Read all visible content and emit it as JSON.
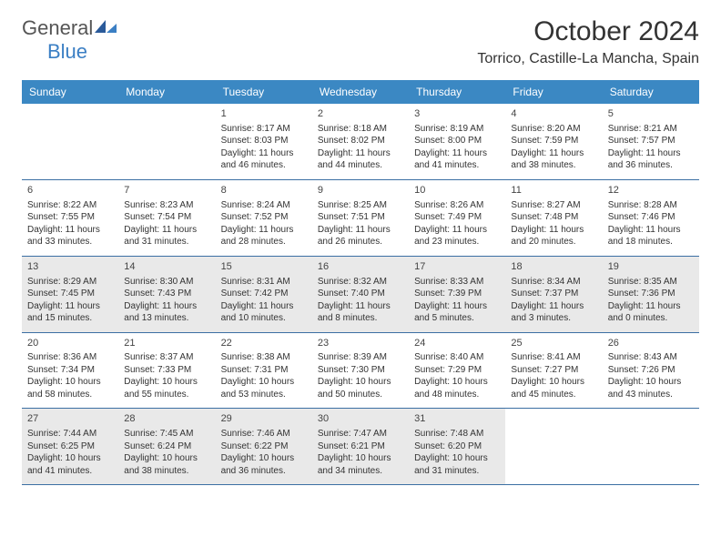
{
  "logo": {
    "text1": "General",
    "text2": "Blue"
  },
  "title": "October 2024",
  "location": "Torrico, Castille-La Mancha, Spain",
  "colors": {
    "header_bg": "#3b88c3",
    "header_text": "#ffffff",
    "shaded_bg": "#e9e9e9",
    "border": "#3b6fa3",
    "logo_blue": "#3b7fc4"
  },
  "day_names": [
    "Sunday",
    "Monday",
    "Tuesday",
    "Wednesday",
    "Thursday",
    "Friday",
    "Saturday"
  ],
  "weeks": [
    [
      null,
      null,
      {
        "n": "1",
        "sr": "Sunrise: 8:17 AM",
        "ss": "Sunset: 8:03 PM",
        "d1": "Daylight: 11 hours",
        "d2": "and 46 minutes."
      },
      {
        "n": "2",
        "sr": "Sunrise: 8:18 AM",
        "ss": "Sunset: 8:02 PM",
        "d1": "Daylight: 11 hours",
        "d2": "and 44 minutes."
      },
      {
        "n": "3",
        "sr": "Sunrise: 8:19 AM",
        "ss": "Sunset: 8:00 PM",
        "d1": "Daylight: 11 hours",
        "d2": "and 41 minutes."
      },
      {
        "n": "4",
        "sr": "Sunrise: 8:20 AM",
        "ss": "Sunset: 7:59 PM",
        "d1": "Daylight: 11 hours",
        "d2": "and 38 minutes."
      },
      {
        "n": "5",
        "sr": "Sunrise: 8:21 AM",
        "ss": "Sunset: 7:57 PM",
        "d1": "Daylight: 11 hours",
        "d2": "and 36 minutes."
      }
    ],
    [
      {
        "n": "6",
        "sr": "Sunrise: 8:22 AM",
        "ss": "Sunset: 7:55 PM",
        "d1": "Daylight: 11 hours",
        "d2": "and 33 minutes."
      },
      {
        "n": "7",
        "sr": "Sunrise: 8:23 AM",
        "ss": "Sunset: 7:54 PM",
        "d1": "Daylight: 11 hours",
        "d2": "and 31 minutes."
      },
      {
        "n": "8",
        "sr": "Sunrise: 8:24 AM",
        "ss": "Sunset: 7:52 PM",
        "d1": "Daylight: 11 hours",
        "d2": "and 28 minutes."
      },
      {
        "n": "9",
        "sr": "Sunrise: 8:25 AM",
        "ss": "Sunset: 7:51 PM",
        "d1": "Daylight: 11 hours",
        "d2": "and 26 minutes."
      },
      {
        "n": "10",
        "sr": "Sunrise: 8:26 AM",
        "ss": "Sunset: 7:49 PM",
        "d1": "Daylight: 11 hours",
        "d2": "and 23 minutes."
      },
      {
        "n": "11",
        "sr": "Sunrise: 8:27 AM",
        "ss": "Sunset: 7:48 PM",
        "d1": "Daylight: 11 hours",
        "d2": "and 20 minutes."
      },
      {
        "n": "12",
        "sr": "Sunrise: 8:28 AM",
        "ss": "Sunset: 7:46 PM",
        "d1": "Daylight: 11 hours",
        "d2": "and 18 minutes."
      }
    ],
    [
      {
        "n": "13",
        "sr": "Sunrise: 8:29 AM",
        "ss": "Sunset: 7:45 PM",
        "d1": "Daylight: 11 hours",
        "d2": "and 15 minutes.",
        "sh": true
      },
      {
        "n": "14",
        "sr": "Sunrise: 8:30 AM",
        "ss": "Sunset: 7:43 PM",
        "d1": "Daylight: 11 hours",
        "d2": "and 13 minutes.",
        "sh": true
      },
      {
        "n": "15",
        "sr": "Sunrise: 8:31 AM",
        "ss": "Sunset: 7:42 PM",
        "d1": "Daylight: 11 hours",
        "d2": "and 10 minutes.",
        "sh": true
      },
      {
        "n": "16",
        "sr": "Sunrise: 8:32 AM",
        "ss": "Sunset: 7:40 PM",
        "d1": "Daylight: 11 hours",
        "d2": "and 8 minutes.",
        "sh": true
      },
      {
        "n": "17",
        "sr": "Sunrise: 8:33 AM",
        "ss": "Sunset: 7:39 PM",
        "d1": "Daylight: 11 hours",
        "d2": "and 5 minutes.",
        "sh": true
      },
      {
        "n": "18",
        "sr": "Sunrise: 8:34 AM",
        "ss": "Sunset: 7:37 PM",
        "d1": "Daylight: 11 hours",
        "d2": "and 3 minutes.",
        "sh": true
      },
      {
        "n": "19",
        "sr": "Sunrise: 8:35 AM",
        "ss": "Sunset: 7:36 PM",
        "d1": "Daylight: 11 hours",
        "d2": "and 0 minutes.",
        "sh": true
      }
    ],
    [
      {
        "n": "20",
        "sr": "Sunrise: 8:36 AM",
        "ss": "Sunset: 7:34 PM",
        "d1": "Daylight: 10 hours",
        "d2": "and 58 minutes."
      },
      {
        "n": "21",
        "sr": "Sunrise: 8:37 AM",
        "ss": "Sunset: 7:33 PM",
        "d1": "Daylight: 10 hours",
        "d2": "and 55 minutes."
      },
      {
        "n": "22",
        "sr": "Sunrise: 8:38 AM",
        "ss": "Sunset: 7:31 PM",
        "d1": "Daylight: 10 hours",
        "d2": "and 53 minutes."
      },
      {
        "n": "23",
        "sr": "Sunrise: 8:39 AM",
        "ss": "Sunset: 7:30 PM",
        "d1": "Daylight: 10 hours",
        "d2": "and 50 minutes."
      },
      {
        "n": "24",
        "sr": "Sunrise: 8:40 AM",
        "ss": "Sunset: 7:29 PM",
        "d1": "Daylight: 10 hours",
        "d2": "and 48 minutes."
      },
      {
        "n": "25",
        "sr": "Sunrise: 8:41 AM",
        "ss": "Sunset: 7:27 PM",
        "d1": "Daylight: 10 hours",
        "d2": "and 45 minutes."
      },
      {
        "n": "26",
        "sr": "Sunrise: 8:43 AM",
        "ss": "Sunset: 7:26 PM",
        "d1": "Daylight: 10 hours",
        "d2": "and 43 minutes."
      }
    ],
    [
      {
        "n": "27",
        "sr": "Sunrise: 7:44 AM",
        "ss": "Sunset: 6:25 PM",
        "d1": "Daylight: 10 hours",
        "d2": "and 41 minutes.",
        "sh": true
      },
      {
        "n": "28",
        "sr": "Sunrise: 7:45 AM",
        "ss": "Sunset: 6:24 PM",
        "d1": "Daylight: 10 hours",
        "d2": "and 38 minutes.",
        "sh": true
      },
      {
        "n": "29",
        "sr": "Sunrise: 7:46 AM",
        "ss": "Sunset: 6:22 PM",
        "d1": "Daylight: 10 hours",
        "d2": "and 36 minutes.",
        "sh": true
      },
      {
        "n": "30",
        "sr": "Sunrise: 7:47 AM",
        "ss": "Sunset: 6:21 PM",
        "d1": "Daylight: 10 hours",
        "d2": "and 34 minutes.",
        "sh": true
      },
      {
        "n": "31",
        "sr": "Sunrise: 7:48 AM",
        "ss": "Sunset: 6:20 PM",
        "d1": "Daylight: 10 hours",
        "d2": "and 31 minutes.",
        "sh": true
      },
      null,
      null
    ]
  ]
}
